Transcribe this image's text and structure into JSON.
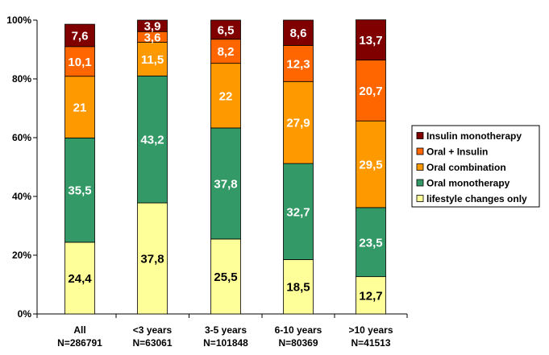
{
  "chart_data": {
    "type": "bar",
    "stacked": true,
    "percent": true,
    "title": "",
    "xlabel": "",
    "ylabel": "",
    "ylim": [
      0,
      100
    ],
    "yticks": [
      "0%",
      "20%",
      "40%",
      "60%",
      "80%",
      "100%"
    ],
    "grid": false,
    "legend_position": "right",
    "categories": [
      [
        "All",
        "N=286791"
      ],
      [
        "<3 years",
        "N=63061"
      ],
      [
        "3-5 years",
        "N=101848"
      ],
      [
        "6-10 years",
        "N=80369"
      ],
      [
        ">10 years",
        "N=41513"
      ]
    ],
    "series": [
      {
        "name": "lifestyle changes only",
        "color": "#ffff99",
        "label_color": "#000000",
        "values": [
          24.4,
          37.8,
          25.5,
          18.5,
          12.7
        ],
        "labels": [
          "24,4",
          "37,8",
          "25,5",
          "18,5",
          "12,7"
        ]
      },
      {
        "name": "Oral monotherapy",
        "color": "#339966",
        "label_color": "#ffffff",
        "values": [
          35.5,
          43.2,
          37.8,
          32.7,
          23.5
        ],
        "labels": [
          "35,5",
          "43,2",
          "37,8",
          "32,7",
          "23,5"
        ]
      },
      {
        "name": "Oral combination",
        "color": "#ff9900",
        "label_color": "#ffffff",
        "values": [
          21,
          11.5,
          22,
          27.9,
          29.5
        ],
        "labels": [
          "21",
          "11,5",
          "22",
          "27,9",
          "29,5"
        ]
      },
      {
        "name": "Oral + Insulin",
        "color": "#ff6600",
        "label_color": "#ffffff",
        "values": [
          10.1,
          3.6,
          8.2,
          12.3,
          20.7
        ],
        "labels": [
          "10,1",
          "3,6",
          "8,2",
          "12,3",
          "20,7"
        ]
      },
      {
        "name": "Insulin monotherapy",
        "color": "#800000",
        "label_color": "#ffffff",
        "values": [
          7.6,
          3.9,
          6.5,
          8.6,
          13.7
        ],
        "labels": [
          "7,6",
          "3,9",
          "6,5",
          "8,6",
          "13,7"
        ]
      }
    ],
    "legend_order": [
      "Insulin monotherapy",
      "Oral + Insulin",
      "Oral combination",
      "Oral monotherapy",
      "lifestyle changes only"
    ]
  }
}
